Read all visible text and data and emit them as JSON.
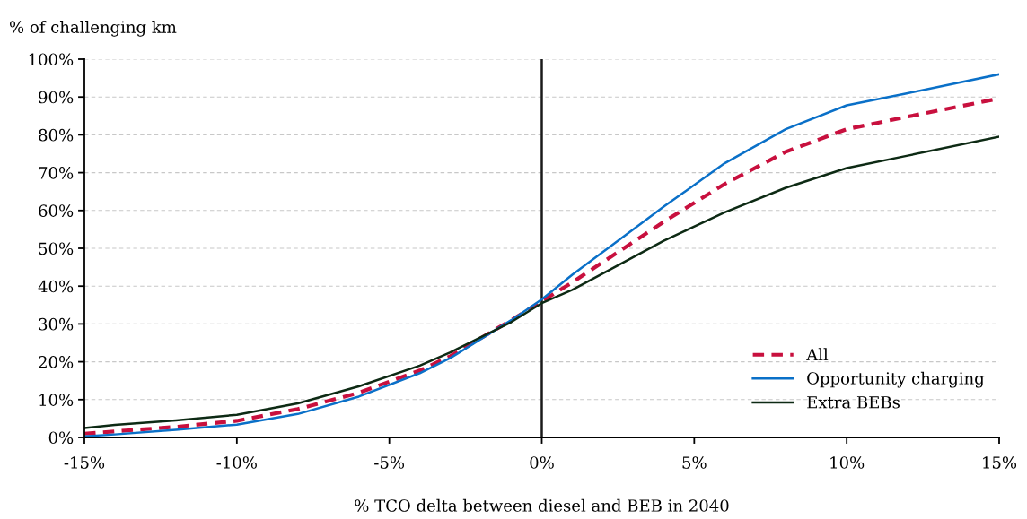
{
  "chart_data": {
    "type": "line",
    "ylabel": "% of challenging km",
    "xlabel": "% TCO delta between diesel and BEB in 2040",
    "xlim": [
      -15,
      15
    ],
    "xticks": [
      {
        "value": -15,
        "label": "-15%"
      },
      {
        "value": -10,
        "label": "-10%"
      },
      {
        "value": -5,
        "label": "-5%"
      },
      {
        "value": 0,
        "label": "0%"
      },
      {
        "value": 5,
        "label": "5%"
      },
      {
        "value": 10,
        "label": "10%"
      },
      {
        "value": 15,
        "label": "15%"
      }
    ],
    "ylim": [
      0,
      100
    ],
    "yticks": [
      {
        "value": 0,
        "label": "0%"
      },
      {
        "value": 10,
        "label": "10%"
      },
      {
        "value": 20,
        "label": "20%"
      },
      {
        "value": 30,
        "label": "30%"
      },
      {
        "value": 40,
        "label": "40%"
      },
      {
        "value": 50,
        "label": "50%"
      },
      {
        "value": 60,
        "label": "60%"
      },
      {
        "value": 70,
        "label": "70%"
      },
      {
        "value": 80,
        "label": "80%"
      },
      {
        "value": 90,
        "label": "90%"
      },
      {
        "value": 100,
        "label": "100%"
      }
    ],
    "grid": "y",
    "legend": "bottom right",
    "ref_lines": [
      {
        "axis": "x",
        "value": 0,
        "color": "#1a1a1a"
      }
    ],
    "series": [
      {
        "name": "All",
        "color": "#c8103e",
        "line_style": "dashed",
        "x": [
          -15,
          -14,
          -12,
          -10,
          -8,
          -6,
          -4,
          -3,
          -1,
          0,
          1,
          4,
          6,
          8,
          10,
          12,
          15
        ],
        "values": [
          1,
          1.6,
          2.8,
          4.4,
          7.5,
          11.8,
          17.7,
          21.5,
          31,
          36,
          41,
          57,
          67,
          75.5,
          81.5,
          84.8,
          89.6
        ]
      },
      {
        "name": "Opportunity charging",
        "color": "#0a70c8",
        "line_style": "solid",
        "x": [
          -15,
          -14,
          -12,
          -10,
          -8,
          -6,
          -4,
          -3,
          -1,
          0,
          1,
          4,
          6,
          8,
          10,
          12,
          15
        ],
        "values": [
          0.3,
          0.8,
          2,
          3.4,
          6.2,
          10.8,
          17,
          21,
          31,
          36.5,
          43,
          61,
          72.5,
          81.5,
          87.8,
          91,
          96
        ]
      },
      {
        "name": "Extra BEBs",
        "color": "#0d2a14",
        "line_style": "solid",
        "x": [
          -15,
          -14,
          -12,
          -10,
          -8,
          -6,
          -4,
          -3,
          -1,
          0,
          1,
          4,
          6,
          8,
          10,
          12,
          15
        ],
        "values": [
          2.5,
          3.3,
          4.5,
          6,
          9,
          13.5,
          19,
          22.5,
          30.5,
          35.5,
          39,
          52,
          59.5,
          66,
          71.2,
          74.5,
          79.5
        ]
      }
    ]
  }
}
